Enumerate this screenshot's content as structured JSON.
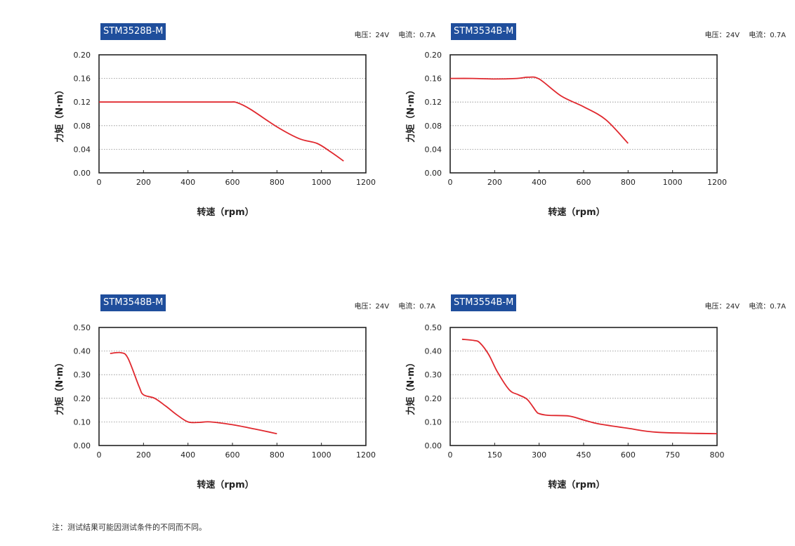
{
  "footnote": "注：测试结果可能因测试条件的不同而不同。",
  "colors": {
    "badge": "#1f4e9c",
    "curve": "#e0282e",
    "grid": "#8a8a8a"
  },
  "panels": [
    {
      "model": "STM3528B-M",
      "voltage": "电压：24V",
      "current": "电流：0.7A"
    },
    {
      "model": "STM3534B-M",
      "voltage": "电压：24V",
      "current": "电流：0.7A"
    },
    {
      "model": "STM3548B-M",
      "voltage": "电压：24V",
      "current": "电流：0.7A"
    },
    {
      "model": "STM3554B-M",
      "voltage": "电压：24V",
      "current": "电流：0.7A"
    }
  ],
  "chart_data": [
    {
      "type": "line",
      "title": "STM3528B-M",
      "xlabel": "转速（rpm）",
      "ylabel": "力矩（N·m）",
      "xlim": [
        0,
        1200
      ],
      "ylim": [
        0,
        0.2
      ],
      "xticks": [
        "0",
        "200",
        "400",
        "600",
        "800",
        "1000",
        "1200"
      ],
      "yticks": [
        "0.00",
        "0.04",
        "0.08",
        "0.12",
        "0.16",
        "0.20"
      ],
      "grid": "horizontal dotted",
      "series": [
        {
          "x": [
            0,
            200,
            400,
            580,
            620,
            680,
            800,
            900,
            980,
            1040,
            1100
          ],
          "y": [
            0.12,
            0.12,
            0.12,
            0.12,
            0.119,
            0.108,
            0.078,
            0.058,
            0.05,
            0.036,
            0.02
          ]
        }
      ]
    },
    {
      "type": "line",
      "title": "STM3534B-M",
      "xlabel": "转速（rpm）",
      "ylabel": "力矩（N·m）",
      "xlim": [
        0,
        1200
      ],
      "ylim": [
        0,
        0.2
      ],
      "xticks": [
        "0",
        "200",
        "400",
        "600",
        "800",
        "1000",
        "1200"
      ],
      "yticks": [
        "0.00",
        "0.04",
        "0.08",
        "0.12",
        "0.16",
        "0.20"
      ],
      "grid": "horizontal dotted",
      "series": [
        {
          "x": [
            0,
            100,
            200,
            300,
            350,
            400,
            500,
            600,
            700,
            800
          ],
          "y": [
            0.16,
            0.16,
            0.159,
            0.16,
            0.162,
            0.159,
            0.13,
            0.112,
            0.09,
            0.05
          ]
        }
      ]
    },
    {
      "type": "line",
      "title": "STM3548B-M",
      "xlabel": "转速（rpm）",
      "ylabel": "力矩（N·m）",
      "xlim": [
        0,
        1200
      ],
      "ylim": [
        0,
        0.5
      ],
      "xticks": [
        "0",
        "200",
        "400",
        "600",
        "800",
        "1000",
        "1200"
      ],
      "yticks": [
        "0.00",
        "0.10",
        "0.20",
        "0.30",
        "0.40",
        "0.50"
      ],
      "grid": "horizontal dotted",
      "series": [
        {
          "x": [
            50,
            100,
            130,
            180,
            200,
            250,
            300,
            350,
            400,
            450,
            500,
            600,
            700,
            800
          ],
          "y": [
            0.39,
            0.393,
            0.37,
            0.25,
            0.215,
            0.2,
            0.167,
            0.13,
            0.1,
            0.098,
            0.1,
            0.088,
            0.07,
            0.05
          ]
        }
      ]
    },
    {
      "type": "line",
      "title": "STM3554B-M",
      "xlabel": "转速（rpm）",
      "ylabel": "力矩（N·m）",
      "xlim": [
        0,
        800
      ],
      "ylim": [
        0,
        0.5
      ],
      "xticks": [
        "0",
        "150",
        "300",
        "450",
        "600",
        "750",
        "800"
      ],
      "yticks": [
        "0.00",
        "0.10",
        "0.20",
        "0.30",
        "0.40",
        "0.50"
      ],
      "grid": "horizontal dotted",
      "series": [
        {
          "x": [
            40,
            80,
            100,
            130,
            160,
            200,
            230,
            260,
            290,
            300,
            330,
            400,
            450,
            500,
            600,
            700,
            800
          ],
          "y": [
            0.45,
            0.445,
            0.435,
            0.385,
            0.31,
            0.235,
            0.215,
            0.195,
            0.145,
            0.135,
            0.128,
            0.125,
            0.108,
            0.092,
            0.073,
            0.056,
            0.05
          ]
        }
      ]
    }
  ]
}
